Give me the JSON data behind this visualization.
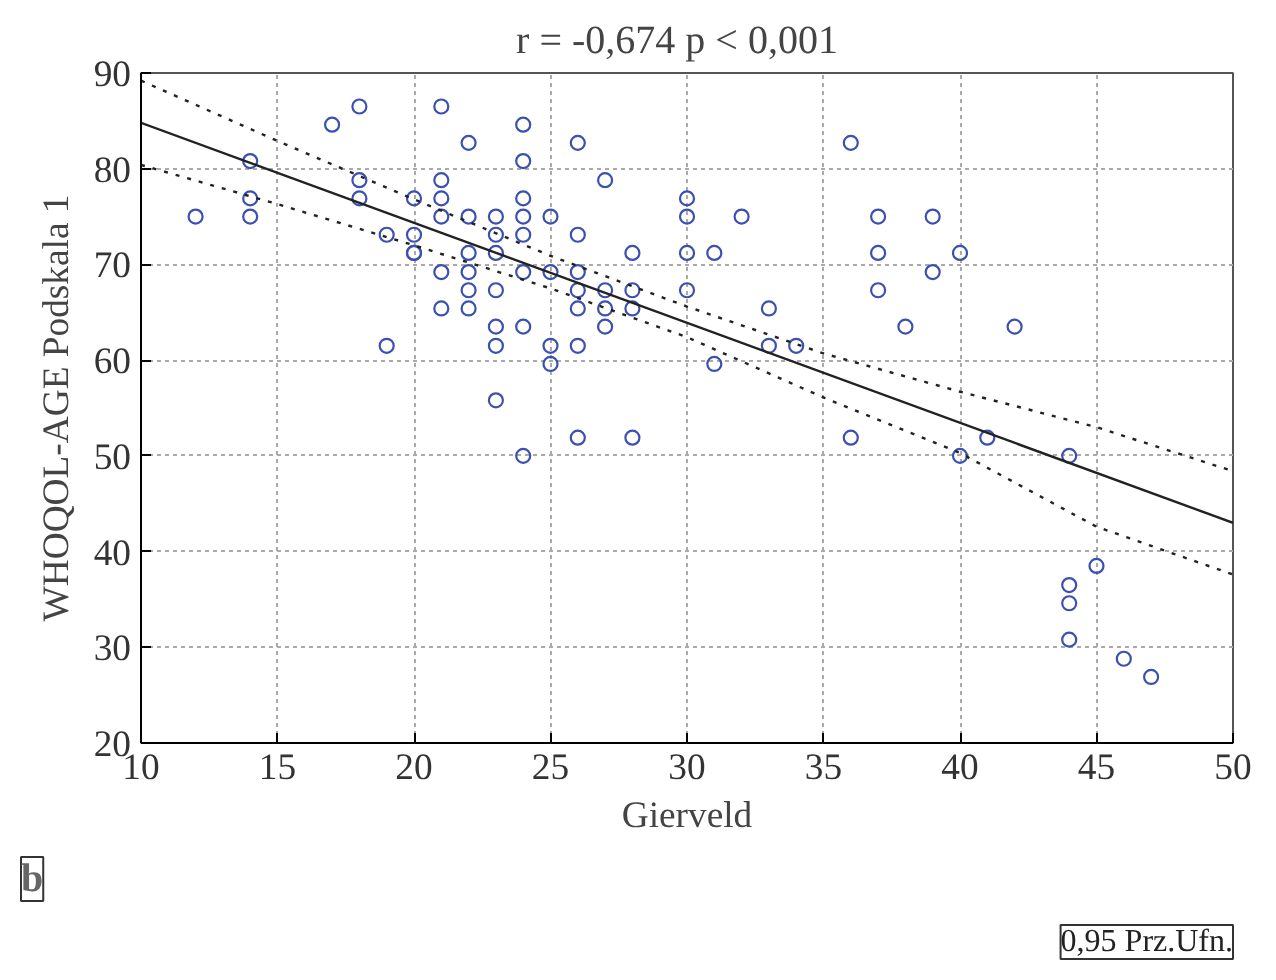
{
  "chart_data": {
    "type": "scatter",
    "title": "r = -0,674   p < 0,001",
    "xlabel": "Gierveld",
    "ylabel": "WHOQOL-AGE Podskala 1",
    "annotations": [
      "b",
      "0,95 Prz.Ufn."
    ],
    "xlim": [
      10,
      50
    ],
    "ylim": [
      20,
      90
    ],
    "xticks": [
      10,
      15,
      20,
      25,
      30,
      35,
      40,
      45,
      50
    ],
    "yticks": [
      20,
      30,
      40,
      50,
      60,
      70,
      80,
      90
    ],
    "grid": true,
    "series": [
      {
        "marker": "circle",
        "color": "#3b50b0",
        "x": [
          12,
          14,
          14,
          14,
          17,
          18,
          18,
          18,
          19,
          19,
          20,
          20,
          20,
          20,
          21,
          21,
          21,
          21,
          21,
          21,
          22,
          22,
          22,
          22,
          22,
          22,
          23,
          23,
          23,
          23,
          23,
          23,
          23,
          24,
          24,
          24,
          24,
          24,
          24,
          24,
          24,
          25,
          25,
          25,
          25,
          26,
          26,
          26,
          26,
          26,
          26,
          26,
          27,
          27,
          27,
          27,
          28,
          28,
          28,
          28,
          30,
          30,
          30,
          30,
          31,
          31,
          32,
          33,
          33,
          34,
          36,
          36,
          37,
          37,
          37,
          38,
          39,
          39,
          40,
          40,
          41,
          42,
          44,
          44,
          44,
          44,
          45,
          46,
          47
        ],
        "values": [
          75,
          80.8,
          76.9,
          75,
          84.6,
          86.5,
          78.8,
          76.9,
          73.1,
          61.5,
          76.9,
          73.1,
          71.2,
          71.2,
          86.5,
          78.8,
          76.9,
          75,
          69.2,
          65.4,
          82.7,
          75,
          71.2,
          69.2,
          67.3,
          65.4,
          75,
          73.1,
          71.2,
          67.3,
          63.5,
          61.5,
          55.8,
          84.6,
          80.8,
          76.9,
          75,
          73.1,
          69.2,
          63.5,
          50,
          75,
          69.2,
          61.5,
          59.6,
          82.7,
          73.1,
          69.2,
          67.3,
          65.4,
          61.5,
          51.9,
          78.8,
          67.3,
          65.4,
          63.5,
          71.2,
          67.3,
          65.4,
          51.9,
          76.9,
          75,
          71.2,
          67.3,
          71.2,
          59.6,
          75,
          65.4,
          61.5,
          61.5,
          82.7,
          51.9,
          75,
          71.2,
          67.3,
          63.5,
          75,
          69.2,
          71.2,
          50,
          51.9,
          63.5,
          50,
          36.5,
          34.6,
          30.8,
          38.5,
          28.8,
          26.9
        ]
      },
      {
        "type": "line",
        "line_style": "solid",
        "color": "#222222",
        "x": [
          10,
          50
        ],
        "values": [
          84.8,
          43.0
        ]
      },
      {
        "type": "line",
        "line_style": "dotted",
        "color": "#222222",
        "x": [
          10,
          15,
          20,
          25,
          30,
          35,
          40,
          45,
          50
        ],
        "values": [
          89.2,
          82.9,
          76.8,
          70.9,
          65.6,
          60.7,
          56.7,
          53.0,
          48.4
        ]
      },
      {
        "type": "line",
        "line_style": "dotted",
        "color": "#222222",
        "x": [
          10,
          15,
          20,
          25,
          30,
          35,
          40,
          45,
          50
        ],
        "values": [
          80.4,
          76.3,
          72.0,
          67.5,
          62.4,
          56.1,
          50.3,
          42.6,
          37.6
        ]
      }
    ]
  }
}
